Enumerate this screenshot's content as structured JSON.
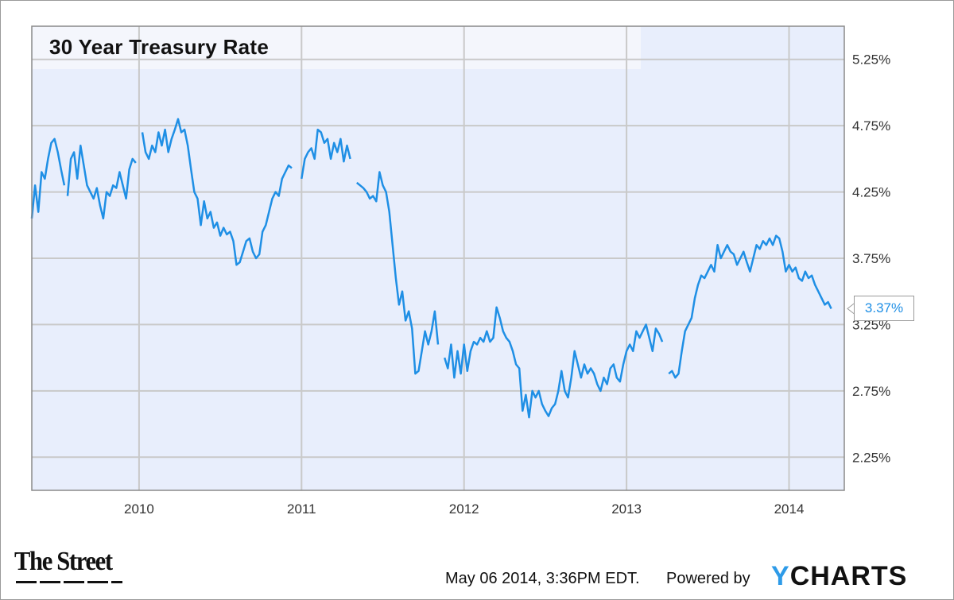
{
  "chart_data": {
    "type": "line",
    "title": "30 Year Treasury Rate",
    "xlabel": "",
    "ylabel": "",
    "x_ticks": [
      "2010",
      "2011",
      "2012",
      "2013",
      "2014"
    ],
    "y_ticks": [
      "2.25%",
      "2.75%",
      "3.25%",
      "3.75%",
      "4.25%",
      "4.75%",
      "5.25%"
    ],
    "ylim": [
      2.0,
      5.5
    ],
    "xlim": [
      2009.34,
      2014.34
    ],
    "grid": true,
    "legend": "none",
    "last_value_label": "3.37%",
    "series": [
      {
        "segments": [
          [
            [
              2009.34,
              4.05
            ],
            [
              2009.36,
              4.3
            ],
            [
              2009.38,
              4.1
            ],
            [
              2009.4,
              4.4
            ],
            [
              2009.42,
              4.35
            ],
            [
              2009.44,
              4.5
            ],
            [
              2009.46,
              4.62
            ],
            [
              2009.48,
              4.65
            ],
            [
              2009.5,
              4.55
            ],
            [
              2009.52,
              4.42
            ],
            [
              2009.54,
              4.3
            ]
          ],
          [
            [
              2009.56,
              4.22
            ],
            [
              2009.58,
              4.5
            ],
            [
              2009.6,
              4.55
            ],
            [
              2009.62,
              4.35
            ],
            [
              2009.64,
              4.6
            ],
            [
              2009.66,
              4.45
            ],
            [
              2009.68,
              4.3
            ],
            [
              2009.7,
              4.25
            ],
            [
              2009.72,
              4.2
            ],
            [
              2009.74,
              4.28
            ],
            [
              2009.76,
              4.15
            ],
            [
              2009.78,
              4.05
            ],
            [
              2009.8,
              4.25
            ],
            [
              2009.82,
              4.22
            ],
            [
              2009.84,
              4.3
            ],
            [
              2009.86,
              4.28
            ],
            [
              2009.88,
              4.4
            ],
            [
              2009.9,
              4.3
            ],
            [
              2009.92,
              4.2
            ],
            [
              2009.94,
              4.42
            ],
            [
              2009.96,
              4.5
            ],
            [
              2009.98,
              4.47
            ]
          ],
          [
            [
              2010.02,
              4.7
            ],
            [
              2010.04,
              4.55
            ],
            [
              2010.06,
              4.5
            ],
            [
              2010.08,
              4.6
            ],
            [
              2010.1,
              4.55
            ],
            [
              2010.12,
              4.7
            ],
            [
              2010.14,
              4.6
            ],
            [
              2010.16,
              4.72
            ],
            [
              2010.18,
              4.55
            ],
            [
              2010.2,
              4.65
            ],
            [
              2010.22,
              4.72
            ],
            [
              2010.24,
              4.8
            ],
            [
              2010.26,
              4.7
            ],
            [
              2010.28,
              4.72
            ],
            [
              2010.3,
              4.6
            ],
            [
              2010.32,
              4.42
            ],
            [
              2010.34,
              4.25
            ],
            [
              2010.36,
              4.2
            ],
            [
              2010.38,
              4.0
            ],
            [
              2010.4,
              4.18
            ],
            [
              2010.42,
              4.05
            ],
            [
              2010.44,
              4.1
            ],
            [
              2010.46,
              3.98
            ],
            [
              2010.48,
              4.02
            ],
            [
              2010.5,
              3.92
            ],
            [
              2010.52,
              3.98
            ],
            [
              2010.54,
              3.93
            ],
            [
              2010.56,
              3.95
            ],
            [
              2010.58,
              3.88
            ],
            [
              2010.6,
              3.7
            ],
            [
              2010.62,
              3.72
            ],
            [
              2010.64,
              3.8
            ],
            [
              2010.66,
              3.88
            ],
            [
              2010.68,
              3.9
            ],
            [
              2010.7,
              3.8
            ],
            [
              2010.72,
              3.75
            ],
            [
              2010.74,
              3.78
            ],
            [
              2010.76,
              3.95
            ],
            [
              2010.78,
              4.0
            ],
            [
              2010.8,
              4.1
            ],
            [
              2010.82,
              4.2
            ],
            [
              2010.84,
              4.25
            ],
            [
              2010.86,
              4.22
            ],
            [
              2010.88,
              4.35
            ],
            [
              2010.9,
              4.4
            ],
            [
              2010.92,
              4.45
            ],
            [
              2010.94,
              4.43
            ]
          ],
          [
            [
              2011.0,
              4.35
            ],
            [
              2011.02,
              4.5
            ],
            [
              2011.04,
              4.55
            ],
            [
              2011.06,
              4.58
            ],
            [
              2011.08,
              4.5
            ],
            [
              2011.1,
              4.72
            ],
            [
              2011.12,
              4.7
            ],
            [
              2011.14,
              4.62
            ],
            [
              2011.16,
              4.65
            ],
            [
              2011.18,
              4.5
            ],
            [
              2011.2,
              4.62
            ],
            [
              2011.22,
              4.55
            ],
            [
              2011.24,
              4.65
            ],
            [
              2011.26,
              4.48
            ],
            [
              2011.28,
              4.6
            ],
            [
              2011.3,
              4.5
            ]
          ],
          [
            [
              2011.34,
              4.32
            ],
            [
              2011.36,
              4.3
            ],
            [
              2011.38,
              4.28
            ],
            [
              2011.4,
              4.25
            ],
            [
              2011.42,
              4.2
            ],
            [
              2011.44,
              4.22
            ],
            [
              2011.46,
              4.18
            ],
            [
              2011.48,
              4.4
            ],
            [
              2011.5,
              4.3
            ],
            [
              2011.52,
              4.25
            ],
            [
              2011.54,
              4.1
            ],
            [
              2011.56,
              3.85
            ],
            [
              2011.58,
              3.6
            ],
            [
              2011.6,
              3.4
            ],
            [
              2011.62,
              3.5
            ],
            [
              2011.64,
              3.28
            ],
            [
              2011.66,
              3.35
            ],
            [
              2011.68,
              3.22
            ],
            [
              2011.7,
              2.88
            ],
            [
              2011.72,
              2.9
            ],
            [
              2011.74,
              3.05
            ],
            [
              2011.76,
              3.2
            ],
            [
              2011.78,
              3.1
            ],
            [
              2011.8,
              3.2
            ],
            [
              2011.82,
              3.35
            ],
            [
              2011.84,
              3.1
            ]
          ],
          [
            [
              2011.88,
              3.0
            ],
            [
              2011.9,
              2.92
            ],
            [
              2011.92,
              3.1
            ],
            [
              2011.94,
              2.85
            ],
            [
              2011.96,
              3.05
            ],
            [
              2011.98,
              2.88
            ],
            [
              2012.0,
              3.1
            ],
            [
              2012.02,
              2.9
            ],
            [
              2012.04,
              3.05
            ],
            [
              2012.06,
              3.12
            ],
            [
              2012.08,
              3.1
            ],
            [
              2012.1,
              3.15
            ],
            [
              2012.12,
              3.12
            ],
            [
              2012.14,
              3.2
            ],
            [
              2012.16,
              3.12
            ],
            [
              2012.18,
              3.15
            ],
            [
              2012.2,
              3.38
            ],
            [
              2012.22,
              3.3
            ],
            [
              2012.24,
              3.2
            ],
            [
              2012.26,
              3.15
            ],
            [
              2012.28,
              3.12
            ],
            [
              2012.3,
              3.05
            ],
            [
              2012.32,
              2.95
            ],
            [
              2012.34,
              2.92
            ],
            [
              2012.36,
              2.6
            ],
            [
              2012.38,
              2.72
            ],
            [
              2012.4,
              2.55
            ],
            [
              2012.42,
              2.75
            ],
            [
              2012.44,
              2.7
            ],
            [
              2012.46,
              2.75
            ],
            [
              2012.48,
              2.65
            ],
            [
              2012.5,
              2.6
            ],
            [
              2012.52,
              2.56
            ],
            [
              2012.54,
              2.62
            ],
            [
              2012.56,
              2.65
            ],
            [
              2012.58,
              2.75
            ],
            [
              2012.6,
              2.9
            ],
            [
              2012.62,
              2.75
            ],
            [
              2012.64,
              2.7
            ],
            [
              2012.66,
              2.85
            ],
            [
              2012.68,
              3.05
            ],
            [
              2012.7,
              2.95
            ],
            [
              2012.72,
              2.85
            ],
            [
              2012.74,
              2.95
            ],
            [
              2012.76,
              2.88
            ],
            [
              2012.78,
              2.92
            ],
            [
              2012.8,
              2.88
            ],
            [
              2012.82,
              2.8
            ],
            [
              2012.84,
              2.75
            ],
            [
              2012.86,
              2.85
            ],
            [
              2012.88,
              2.8
            ],
            [
              2012.9,
              2.92
            ],
            [
              2012.92,
              2.95
            ],
            [
              2012.94,
              2.85
            ],
            [
              2012.96,
              2.82
            ],
            [
              2012.98,
              2.95
            ],
            [
              2013.0,
              3.05
            ],
            [
              2013.02,
              3.1
            ],
            [
              2013.04,
              3.05
            ],
            [
              2013.06,
              3.2
            ],
            [
              2013.08,
              3.15
            ],
            [
              2013.1,
              3.2
            ],
            [
              2013.12,
              3.25
            ],
            [
              2013.14,
              3.15
            ],
            [
              2013.16,
              3.05
            ],
            [
              2013.18,
              3.22
            ],
            [
              2013.2,
              3.18
            ],
            [
              2013.22,
              3.12
            ]
          ],
          [
            [
              2013.26,
              2.88
            ],
            [
              2013.28,
              2.9
            ],
            [
              2013.3,
              2.85
            ],
            [
              2013.32,
              2.88
            ],
            [
              2013.34,
              3.05
            ],
            [
              2013.36,
              3.2
            ],
            [
              2013.38,
              3.25
            ],
            [
              2013.4,
              3.3
            ],
            [
              2013.42,
              3.45
            ],
            [
              2013.44,
              3.55
            ],
            [
              2013.46,
              3.62
            ],
            [
              2013.48,
              3.6
            ],
            [
              2013.5,
              3.65
            ],
            [
              2013.52,
              3.7
            ],
            [
              2013.54,
              3.65
            ],
            [
              2013.56,
              3.85
            ],
            [
              2013.58,
              3.75
            ],
            [
              2013.6,
              3.8
            ],
            [
              2013.62,
              3.85
            ],
            [
              2013.64,
              3.8
            ],
            [
              2013.66,
              3.78
            ],
            [
              2013.68,
              3.7
            ],
            [
              2013.7,
              3.75
            ],
            [
              2013.72,
              3.8
            ],
            [
              2013.74,
              3.72
            ],
            [
              2013.76,
              3.65
            ],
            [
              2013.78,
              3.75
            ],
            [
              2013.8,
              3.85
            ],
            [
              2013.82,
              3.82
            ],
            [
              2013.84,
              3.88
            ],
            [
              2013.86,
              3.85
            ],
            [
              2013.88,
              3.9
            ],
            [
              2013.9,
              3.85
            ],
            [
              2013.92,
              3.92
            ],
            [
              2013.94,
              3.9
            ],
            [
              2013.96,
              3.8
            ],
            [
              2013.98,
              3.65
            ],
            [
              2014.0,
              3.7
            ],
            [
              2014.02,
              3.65
            ],
            [
              2014.04,
              3.68
            ],
            [
              2014.06,
              3.6
            ],
            [
              2014.08,
              3.58
            ],
            [
              2014.1,
              3.65
            ],
            [
              2014.12,
              3.6
            ],
            [
              2014.14,
              3.62
            ],
            [
              2014.16,
              3.55
            ],
            [
              2014.18,
              3.5
            ],
            [
              2014.2,
              3.45
            ],
            [
              2014.22,
              3.4
            ],
            [
              2014.24,
              3.42
            ],
            [
              2014.26,
              3.37
            ]
          ]
        ]
      }
    ],
    "colors": {
      "line": "#1f8fe5",
      "plot_bg": "#e8eefc",
      "grid": "#c9c9c9",
      "title_bg": "#f4f6fc"
    }
  },
  "footer": {
    "brand_left": "The Street",
    "timestamp": "May 06 2014, 3:36PM EDT.",
    "powered_by": "Powered by",
    "logo_y": "Y",
    "logo_rest": "CHARTS"
  }
}
